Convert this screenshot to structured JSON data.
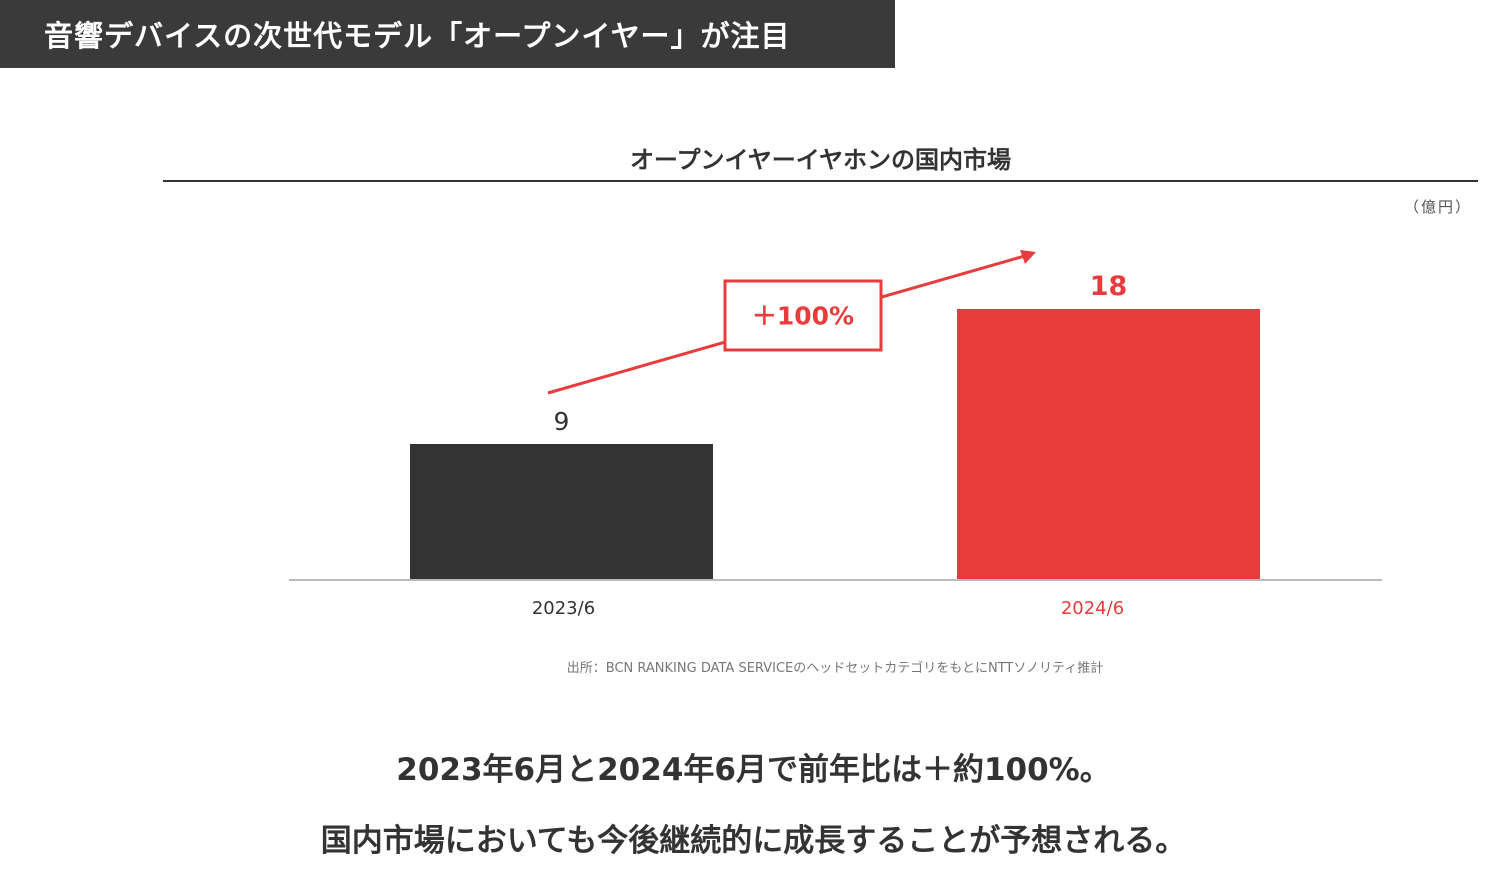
{
  "header": {
    "title": "音響デバイスの次世代モデル「オープンイヤー」が注目"
  },
  "chart_data": {
    "type": "bar",
    "title": "オープンイヤーイヤホンの国内市場",
    "unit": "（億円）",
    "categories": [
      "2023/6",
      "2024/6"
    ],
    "values": [
      9,
      18
    ],
    "value_labels": [
      "9",
      "18"
    ],
    "colors": [
      "#333333",
      "#e83c3c"
    ],
    "label_colors": [
      "#333333",
      "#e83c3c"
    ],
    "ylim": [
      0,
      20
    ],
    "growth_label": "＋100%",
    "accent": "#e83c3c",
    "source": "出所：BCN RANKING DATA SERVICEのヘッドセットカテゴリをもとにNTTソノリティ推計"
  },
  "caption": {
    "line1": "2023年6月と2024年6月で前年比は＋約100%。",
    "line2": "国内市場においても今後継続的に成長することが予想される。"
  }
}
